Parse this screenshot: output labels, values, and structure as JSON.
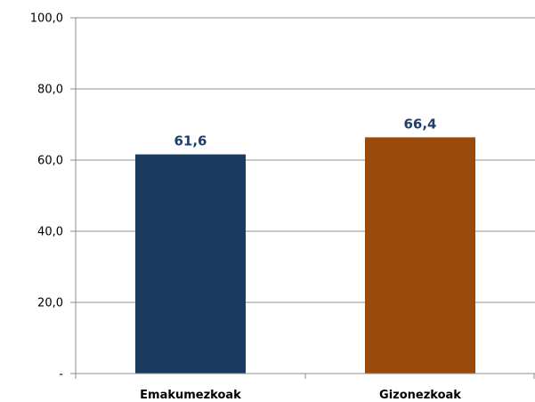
{
  "chart_data": {
    "type": "bar",
    "categories": [
      "Emakumezkoak",
      "Gizonezkoak"
    ],
    "values": [
      61.6,
      66.4
    ],
    "value_labels": [
      "61,6",
      "66,4"
    ],
    "bar_colors": [
      "#1b3a5f",
      "#9a4a0a"
    ],
    "data_label_color": "#1f3e6e",
    "ylim": [
      0,
      100
    ],
    "yticks": [
      0,
      20,
      40,
      60,
      80,
      100
    ],
    "ytick_labels": [
      "-",
      "20,0",
      "40,0",
      "60,0",
      "80,0",
      "100,0"
    ],
    "grid": true,
    "title": "",
    "xlabel": "",
    "ylabel": ""
  }
}
